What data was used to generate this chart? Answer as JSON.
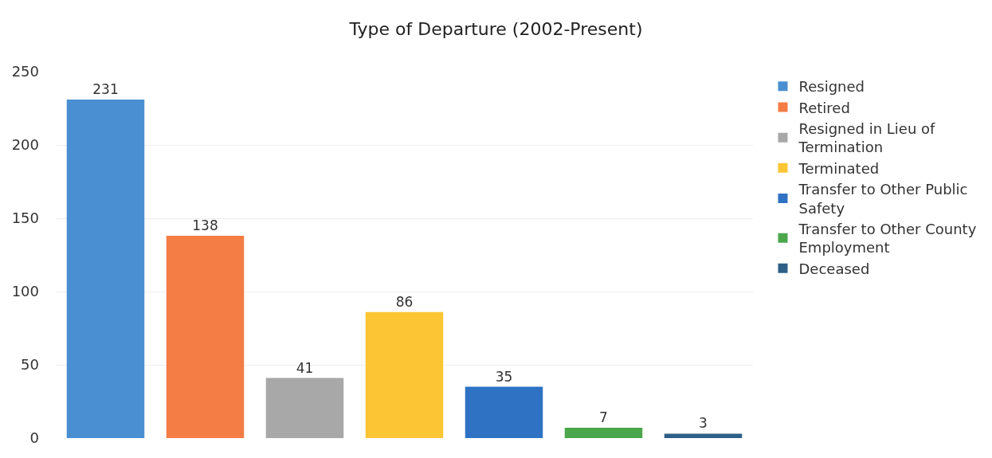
{
  "chart_data": {
    "type": "bar",
    "title": "Type of Departure (2002-Present)",
    "categories": [
      null,
      null,
      null,
      null,
      null,
      null,
      null
    ],
    "series": [
      {
        "name": "Resigned",
        "color": "#4a8fd2",
        "values": [
          231,
          null,
          null,
          null,
          null,
          null,
          null
        ]
      },
      {
        "name": "Retired",
        "color": "#f47c45",
        "values": [
          null,
          138,
          null,
          null,
          null,
          null,
          null
        ]
      },
      {
        "name": "Resigned in Lieu of Termination",
        "color": "#a8a8a8",
        "values": [
          null,
          null,
          41,
          null,
          null,
          null,
          null
        ]
      },
      {
        "name": "Terminated",
        "color": "#fcc534",
        "values": [
          null,
          null,
          null,
          86,
          null,
          null,
          null
        ]
      },
      {
        "name": "Transfer to Other Public Safety",
        "color": "#2f72c4",
        "values": [
          null,
          null,
          null,
          null,
          35,
          null,
          null
        ]
      },
      {
        "name": "Transfer to Other County Employment",
        "color": "#4ca64c",
        "values": [
          null,
          null,
          null,
          null,
          null,
          7,
          null
        ]
      },
      {
        "name": "Deceased",
        "color": "#2d5f87",
        "values": [
          null,
          null,
          null,
          null,
          null,
          null,
          3
        ]
      }
    ],
    "ylim": [
      0,
      250
    ],
    "yticks": [
      0,
      50,
      100,
      150,
      200,
      250
    ],
    "grid": "y",
    "legend": "right",
    "data_labels": true
  }
}
